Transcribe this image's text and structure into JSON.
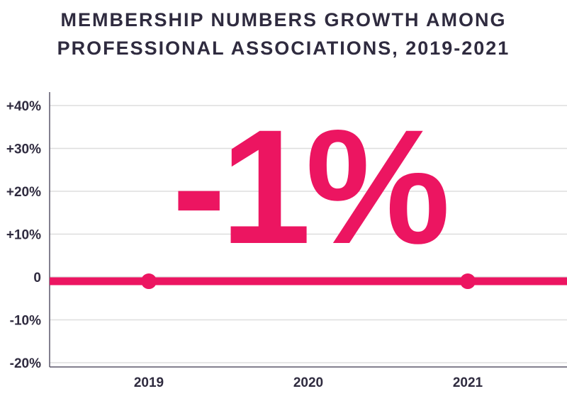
{
  "title_line1": "MEMBERSHIP NUMBERS GROWTH AMONG",
  "title_line2": "PROFESSIONAL ASSOCIATIONS, 2019-2021",
  "chart_data": {
    "type": "line",
    "title": "MEMBERSHIP NUMBERS GROWTH AMONG PROFESSIONAL ASSOCIATIONS, 2019-2021",
    "x": [
      "2019",
      "2020",
      "2021"
    ],
    "series": [
      {
        "values": [
          -1,
          -1,
          -1
        ]
      }
    ],
    "marker_points": [
      "2019",
      "2021"
    ],
    "yticks": [
      40,
      30,
      20,
      10,
      0,
      -10,
      -20
    ],
    "ytick_labels": [
      "+40%",
      "+30%",
      "+20%",
      "+10%",
      "0",
      "-10%",
      "-20%"
    ],
    "ylim": [
      -22,
      42
    ],
    "annotation": "-1%",
    "grid": true,
    "line_color": "#ec1561",
    "grid_color": "#dedede",
    "text_color": "#2f2b3f"
  }
}
